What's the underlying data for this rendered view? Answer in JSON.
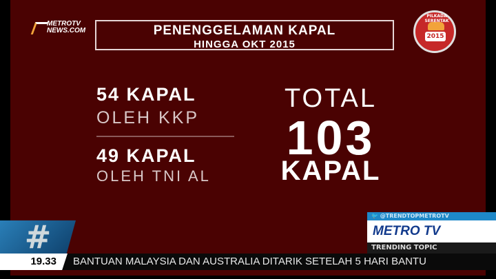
{
  "channel_logo": {
    "line1": "METROTV",
    "line2": "NEWS.COM"
  },
  "title": {
    "line1": "PENENGGELAMAN KAPAL",
    "line2": "HINGGA OKT 2015"
  },
  "badge": {
    "label": "PILKADA SERENTAK",
    "year": "2015"
  },
  "stats": [
    {
      "count": "54 KAPAL",
      "by": "OLEH KKP"
    },
    {
      "count": "49 KAPAL",
      "by": "OLEH TNI AL"
    }
  ],
  "total": {
    "label": "TOTAL",
    "value": "103",
    "unit": "KAPAL"
  },
  "hashtag": "#",
  "ticker": {
    "time": "19.33",
    "headline": "BANTUAN MALAYSIA DAN AUSTRALIA DITARIK SETELAH 5 HARI BANTU"
  },
  "trending": {
    "twitter": "@TRENDTOPMETROTV",
    "brand": "METRO TV",
    "label": "TRENDING TOPIC"
  },
  "colors": {
    "background": "#4a0202",
    "accent": "#1e88c8"
  }
}
